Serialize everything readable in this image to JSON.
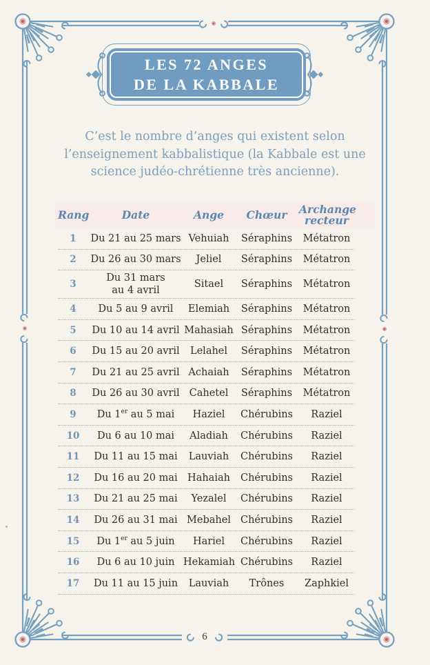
{
  "title": {
    "line1": "LES 72 ANGES",
    "line2": "DE LA KABBALE"
  },
  "intro": {
    "lines": [
      "C’est le nombre d’anges qui existent selon",
      "l’enseignement kabbalistique (la Kabbale est une",
      "science judéo-chrétienne très ancienne)."
    ]
  },
  "table": {
    "headers": [
      "Rang",
      "Date",
      "Ange",
      "Chœur",
      "Archange recteur"
    ],
    "rows": [
      {
        "rang": "1",
        "date": "Du 21 au 25 mars",
        "ange": "Vehuiah",
        "choeur": "Séraphins",
        "archange": "Métatron"
      },
      {
        "rang": "2",
        "date": "Du 26 au 30 mars",
        "ange": "Jeliel",
        "choeur": "Séraphins",
        "archange": "Métatron"
      },
      {
        "rang": "3",
        "date": "Du 31 mars\nau 4 avril",
        "ange": "Sitael",
        "choeur": "Séraphins",
        "archange": "Métatron"
      },
      {
        "rang": "4",
        "date": "Du 5 au 9 avril",
        "ange": "Elemiah",
        "choeur": "Séraphins",
        "archange": "Métatron"
      },
      {
        "rang": "5",
        "date": "Du 10 au 14 avril",
        "ange": "Mahasiah",
        "choeur": "Séraphins",
        "archange": "Métatron"
      },
      {
        "rang": "6",
        "date": "Du 15 au 20 avril",
        "ange": "Lelahel",
        "choeur": "Séraphins",
        "archange": "Métatron"
      },
      {
        "rang": "7",
        "date": "Du 21 au 25 avril",
        "ange": "Achaiah",
        "choeur": "Séraphins",
        "archange": "Métatron"
      },
      {
        "rang": "8",
        "date": "Du 26 au 30 avril",
        "ange": "Cahetel",
        "choeur": "Séraphins",
        "archange": "Métatron"
      },
      {
        "rang": "9",
        "date": "Du 1er au 5 mai",
        "ange": "Haziel",
        "choeur": "Chérubins",
        "archange": "Raziel"
      },
      {
        "rang": "10",
        "date": "Du 6 au 10 mai",
        "ange": "Aladiah",
        "choeur": "Chérubins",
        "archange": "Raziel"
      },
      {
        "rang": "11",
        "date": "Du 11 au 15 mai",
        "ange": "Lauviah",
        "choeur": "Chérubins",
        "archange": "Raziel"
      },
      {
        "rang": "12",
        "date": "Du 16 au 20 mai",
        "ange": "Hahaiah",
        "choeur": "Chérubins",
        "archange": "Raziel"
      },
      {
        "rang": "13",
        "date": "Du 21 au 25 mai",
        "ange": "Yezalel",
        "choeur": "Chérubins",
        "archange": "Raziel"
      },
      {
        "rang": "14",
        "date": "Du 26 au 31 mai",
        "ange": "Mebahel",
        "choeur": "Chérubins",
        "archange": "Raziel"
      },
      {
        "rang": "15",
        "date": "Du 1er au 5 juin",
        "ange": "Hariel",
        "choeur": "Chérubins",
        "archange": "Raziel"
      },
      {
        "rang": "16",
        "date": "Du 6 au 10 juin",
        "ange": "Hekamiah",
        "choeur": "Chérubins",
        "archange": "Raziel"
      },
      {
        "rang": "17",
        "date": "Du 11 au 15 juin",
        "ange": "Lauviah",
        "choeur": "Trônes",
        "archange": "Zaphkiel"
      }
    ]
  },
  "footer": {
    "page_number": "6"
  },
  "colors": {
    "accent_blue": "#76a0bf",
    "title_bg": "#6f9cc0",
    "header_band": "#f6ebe9",
    "header_text": "#5d87ad",
    "body_text": "#2f2e2b",
    "rank_text": "#7195b4",
    "intro_text": "#7b9fbc",
    "pink_light": "#dcabb4",
    "pink_dark": "#a86270",
    "page_bg": "#f6f3ec",
    "dotted_line": "#b4aea2",
    "page_number_text": "#3a3a36"
  }
}
